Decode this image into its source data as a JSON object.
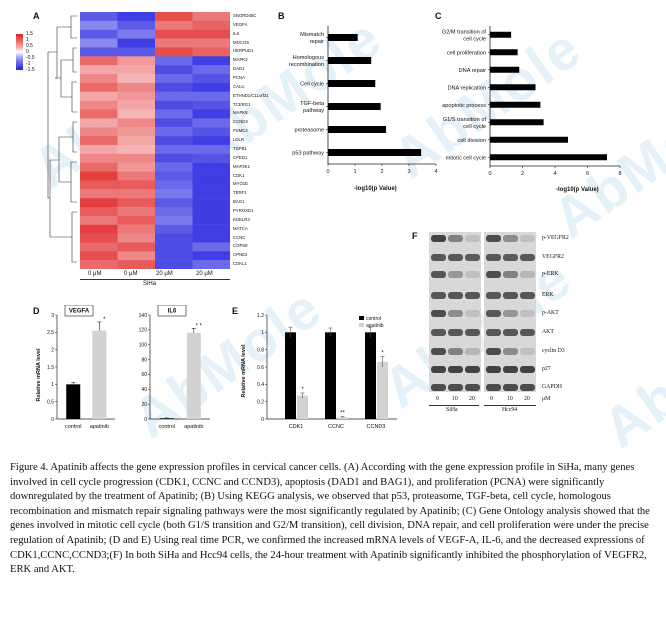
{
  "watermark": "AbMole",
  "panels": {
    "A": "A",
    "B": "B",
    "C": "C",
    "D": "D",
    "E": "E",
    "F": "F"
  },
  "heatmap": {
    "scale_ticks": [
      "1.5",
      "1",
      "0.5",
      "0",
      "-0.5",
      "-1",
      "-1.5"
    ],
    "genes": [
      "SNORD45C",
      "VEGFA",
      "IL6",
      "MOCOS",
      "HERPUD1",
      "MAPK3",
      "DAD1",
      "PCNA",
      "CALU",
      "ETHND1/C11orf31",
      "TCERG1",
      "MAPK8",
      "CCND3",
      "PSMC2",
      "LDLR",
      "TGFB1",
      "CPED1",
      "MAP3K1",
      "CDK1",
      "MYO1E",
      "TERF1",
      "BAG1",
      "PYROXD1",
      "KDELR3",
      "MATCA",
      "CCNC",
      "COPS8",
      "CPNE2",
      "CDKL1"
    ],
    "columns": [
      "0 μM",
      "0 μM",
      "20 μM",
      "20 μM"
    ],
    "group_label": "SiHa"
  },
  "kegg": {
    "xlabel": "-log10(p Value)",
    "xticks": [
      "0",
      "1",
      "2",
      "3",
      "4"
    ]
  },
  "go": {
    "xlabel": "-log10(p Value)",
    "xticks": [
      "0",
      "2",
      "4",
      "6",
      "8"
    ]
  },
  "mrna_d": {
    "ylabel": "Relative mRNA level",
    "vegfa_title": "VEGFA",
    "il6_title": "IL6",
    "vegfa_yticks": [
      "0",
      "0.5",
      "1",
      "1.5",
      "2",
      "2.5",
      "3"
    ],
    "il6_yticks": [
      "0",
      "20",
      "40",
      "60",
      "80",
      "100",
      "120",
      "140"
    ],
    "categories": [
      "control",
      "apatinib"
    ],
    "vegfa_star": "*",
    "il6_star": "* *"
  },
  "mrna_e": {
    "ylabel": "Relative mRNA level",
    "yticks": [
      "0",
      "0.2",
      "0.4",
      "0.6",
      "0.8",
      "1",
      "1.2"
    ],
    "legend": [
      "control",
      "apatinib"
    ],
    "categories": [
      "CDK1",
      "CCNC",
      "CCND3"
    ],
    "stars": [
      "*",
      "**",
      "*"
    ]
  },
  "blot": {
    "proteins": [
      "p-VEGFR2",
      "VEGFR2",
      "p-ERK",
      "ERK",
      "p-AKT",
      "AKT",
      "cyclin D3",
      "p27",
      "GAPDH"
    ],
    "doses": [
      "0",
      "10",
      "20",
      "0",
      "10",
      "20"
    ],
    "unit": "μM",
    "cells": [
      "SiHa",
      "Hcc94"
    ]
  },
  "caption": "Figure 4. Apatinib affects the gene expression profiles in cervical cancer cells. (A) According with the gene expression profile in SiHa, many genes involved in cell cycle progression (CDK1, CCNC and CCND3), apoptosis (DAD1 and BAG1), and proliferation (PCNA) were significantly downregulated by the treatment of  Apatinib; (B) Using KEGG analysis, we observed that p53, proteasome, TGF-beta, cell cycle, homologous recombination and mismatch repair signaling pathways were the most significantly regulated by Apatinib; (C) Gene Ontology analysis showed that the genes involved in mitotic cell cycle (both G1/S transition and G2/M transition), cell division, DNA repair, and cell proliferation were under the precise regulation of Apatinib; (D and E) Using real time PCR, we confirmed the increased mRNA levels of VEGF-A, IL-6, and the decreased expressions of CDK1,CCNC,CCND3;(F) In both SiHa and Hcc94 cells, the 24-hour treatment with Apatinib significantly inhibited the phosphorylation of VEGFR2, ERK and AKT.",
  "chart_data": [
    {
      "type": "bar",
      "orientation": "horizontal",
      "panel": "B",
      "categories": [
        "Mismatch repair",
        "Homologous recombination",
        "Cell cycle",
        "TGF-beta pathway",
        "proteasome",
        "p53 pathway"
      ],
      "values": [
        1.1,
        1.6,
        1.75,
        1.95,
        2.15,
        3.45
      ],
      "xlabel": "-log10(p Value)",
      "xlim": [
        0,
        4
      ]
    },
    {
      "type": "bar",
      "orientation": "horizontal",
      "panel": "C",
      "categories": [
        "G2/M transition of cell cycle",
        "cell proliferation",
        "DNA repair",
        "DNA replication",
        "apoptotic process",
        "G1/S transition of cell cycle",
        "cell division",
        "mitotic cell cycle"
      ],
      "values": [
        1.3,
        1.7,
        1.8,
        2.8,
        3.1,
        3.3,
        4.8,
        7.2
      ],
      "xlabel": "-log10(p Value)",
      "xlim": [
        0,
        8
      ]
    },
    {
      "type": "bar",
      "panel": "D-VEGFA",
      "title": "VEGFA",
      "categories": [
        "control",
        "apatinib"
      ],
      "values": [
        1.0,
        2.55
      ],
      "errors": [
        0.05,
        0.25
      ],
      "ylabel": "Relative mRNA level",
      "ylim": [
        0,
        3
      ]
    },
    {
      "type": "bar",
      "panel": "D-IL6",
      "title": "IL6",
      "categories": [
        "control",
        "apatinib"
      ],
      "values": [
        1,
        116
      ],
      "errors": [
        0.5,
        6
      ],
      "ylim": [
        0,
        140
      ]
    },
    {
      "type": "bar",
      "panel": "E",
      "categories": [
        "CDK1",
        "CCNC",
        "CCND3"
      ],
      "series": [
        {
          "name": "control",
          "values": [
            1.0,
            1.0,
            1.0
          ],
          "errors": [
            0.06,
            0.05,
            0.06
          ]
        },
        {
          "name": "apatinib",
          "values": [
            0.27,
            0.02,
            0.66
          ],
          "errors": [
            0.03,
            0.01,
            0.06
          ]
        }
      ],
      "ylabel": "Relative mRNA level",
      "ylim": [
        0,
        1.2
      ],
      "legend": "top-right"
    }
  ]
}
